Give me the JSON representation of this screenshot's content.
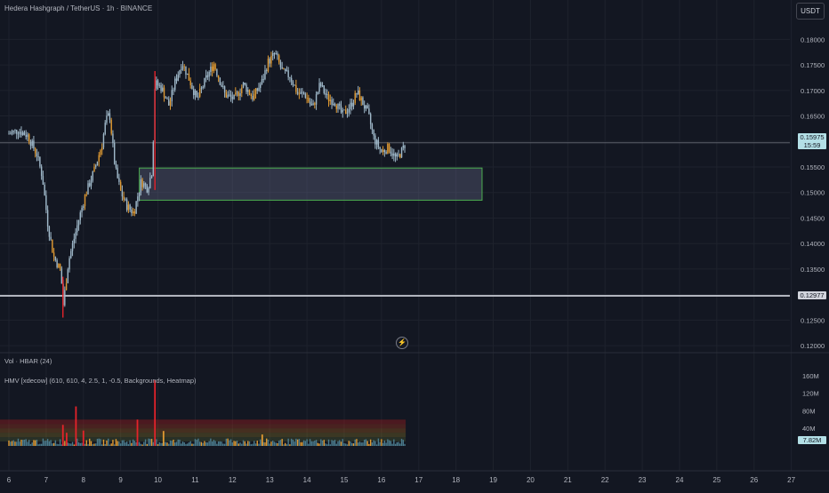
{
  "header": {
    "title": "Hedera Hashgraph / TetherUS · 1h · BINANCE",
    "currency_button": "USDT"
  },
  "price_tags": {
    "current_price": "0.15975",
    "countdown": "15:59",
    "support_level": "0.12977",
    "volume_current": "7.82M"
  },
  "indicators": {
    "volume_label": "Vol · HBAR (24)",
    "hmv_label": "HMV [xdecow] (610, 610, 4, 2.5, 1, -0.5, Backgrounds, Heatmap)"
  },
  "colors": {
    "background": "#131722",
    "grid": "#1e222d",
    "candle": "#9fb8c9",
    "candle_highlight": "#e09a32",
    "candle_extreme": "#e5232a",
    "zone_border": "#4caf50",
    "support_line": "#b2b5be",
    "current_price_bg": "#b3dfe6"
  },
  "chart_data": [
    {
      "type": "candlestick",
      "title": "Hedera Hashgraph / TetherUS · 1h · BINANCE",
      "xlabel": "",
      "ylabel": "",
      "x_ticks": [
        "6",
        "7",
        "8",
        "9",
        "10",
        "11",
        "12",
        "13",
        "14",
        "15",
        "16",
        "17",
        "18",
        "19",
        "20",
        "21",
        "22",
        "23",
        "24",
        "25",
        "26",
        "27"
      ],
      "y_ticks": [
        "0.12000",
        "0.12500",
        "0.13000",
        "0.13500",
        "0.14000",
        "0.14500",
        "0.15000",
        "0.15500",
        "0.16000",
        "0.16500",
        "0.17000",
        "0.17500",
        "0.18000"
      ],
      "ylim": [
        0.1195,
        0.1825
      ],
      "xlim": [
        6.0,
        27.2
      ],
      "grid": true,
      "close_path": [
        [
          6.0,
          0.1615
        ],
        [
          6.25,
          0.1622
        ],
        [
          6.5,
          0.1612
        ],
        [
          6.75,
          0.1575
        ],
        [
          6.9,
          0.153
        ],
        [
          7.05,
          0.1435
        ],
        [
          7.2,
          0.1375
        ],
        [
          7.4,
          0.1345
        ],
        [
          7.45,
          0.1275
        ],
        [
          7.6,
          0.1365
        ],
        [
          7.85,
          0.144
        ],
        [
          8.05,
          0.1495
        ],
        [
          8.3,
          0.1545
        ],
        [
          8.5,
          0.1595
        ],
        [
          8.6,
          0.164
        ],
        [
          8.7,
          0.1655
        ],
        [
          8.85,
          0.1548
        ],
        [
          9.0,
          0.1502
        ],
        [
          9.15,
          0.1475
        ],
        [
          9.35,
          0.146
        ],
        [
          9.55,
          0.1522
        ],
        [
          9.72,
          0.1508
        ],
        [
          9.85,
          0.1545
        ],
        [
          9.92,
          0.1715
        ],
        [
          10.1,
          0.1705
        ],
        [
          10.3,
          0.167
        ],
        [
          10.45,
          0.1715
        ],
        [
          10.65,
          0.1755
        ],
        [
          10.85,
          0.172
        ],
        [
          11.05,
          0.1682
        ],
        [
          11.3,
          0.1725
        ],
        [
          11.5,
          0.1752
        ],
        [
          11.8,
          0.1692
        ],
        [
          12.05,
          0.1683
        ],
        [
          12.3,
          0.1712
        ],
        [
          12.55,
          0.1686
        ],
        [
          12.8,
          0.1718
        ],
        [
          12.95,
          0.1755
        ],
        [
          13.15,
          0.1772
        ],
        [
          13.35,
          0.1735
        ],
        [
          13.55,
          0.1728
        ],
        [
          13.75,
          0.1694
        ],
        [
          13.95,
          0.1692
        ],
        [
          14.15,
          0.1665
        ],
        [
          14.35,
          0.1712
        ],
        [
          14.55,
          0.1685
        ],
        [
          14.75,
          0.1678
        ],
        [
          14.95,
          0.1652
        ],
        [
          15.15,
          0.1668
        ],
        [
          15.35,
          0.1696
        ],
        [
          15.5,
          0.1675
        ],
        [
          15.65,
          0.1652
        ],
        [
          15.8,
          0.1605
        ],
        [
          16.0,
          0.158
        ],
        [
          16.2,
          0.1588
        ],
        [
          16.4,
          0.1565
        ],
        [
          16.55,
          0.1582
        ],
        [
          16.65,
          0.1597
        ]
      ],
      "spike_candles": [
        {
          "x": 7.45,
          "low": 0.1255,
          "high": 0.1335
        },
        {
          "x": 9.92,
          "low": 0.1505,
          "high": 0.1738
        }
      ],
      "demand_zone": {
        "x_start": 9.5,
        "x_end": 18.7,
        "y_low": 0.1485,
        "y_high": 0.1548
      },
      "horizontal_levels": [
        {
          "value": 0.12977,
          "label": "0.12977"
        },
        {
          "value": 0.15975,
          "label": "0.15975"
        }
      ]
    },
    {
      "type": "bar",
      "title": "Vol · HBAR (24)",
      "y_ticks": [
        "40M",
        "80M",
        "120M",
        "160M"
      ],
      "ylim": [
        0,
        170
      ],
      "unit": "M",
      "last_value": 7.82,
      "spikes": [
        {
          "x": 7.45,
          "value": 48,
          "color": "#e5232a"
        },
        {
          "x": 7.55,
          "value": 30,
          "color": "#e5232a"
        },
        {
          "x": 7.8,
          "value": 90,
          "color": "#e5232a"
        },
        {
          "x": 8.0,
          "value": 35,
          "color": "#e5232a"
        },
        {
          "x": 9.45,
          "value": 60,
          "color": "#e5232a"
        },
        {
          "x": 9.92,
          "value": 150,
          "color": "#e5232a"
        },
        {
          "x": 10.15,
          "value": 34,
          "color": "#e09a32"
        },
        {
          "x": 12.8,
          "value": 26,
          "color": "#e09a32"
        }
      ]
    }
  ]
}
